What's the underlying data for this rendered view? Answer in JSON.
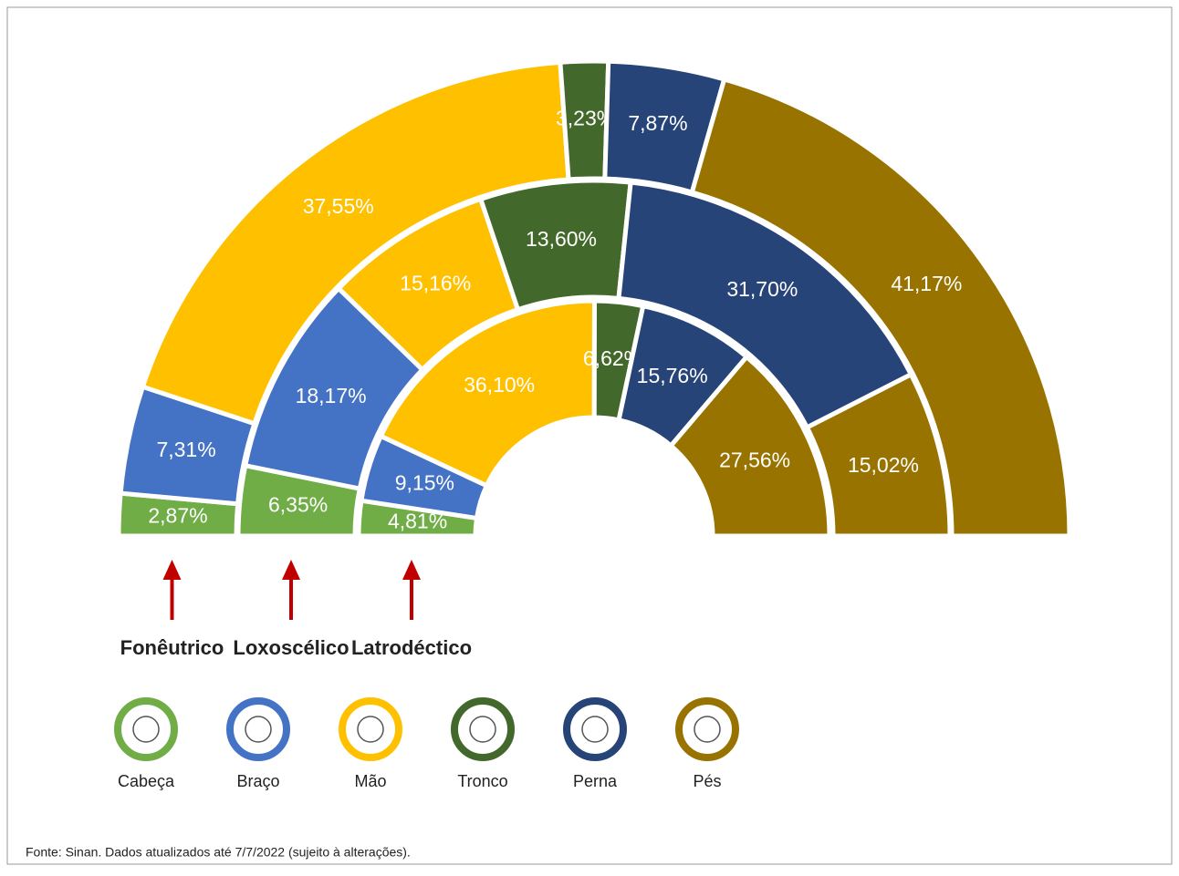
{
  "chart_data": {
    "type": "nested-semi-donut",
    "categories": [
      "Cabeça",
      "Braço",
      "Mão",
      "Tronco",
      "Perna",
      "Pés"
    ],
    "colors": [
      "#70ad47",
      "#4472c4",
      "#ffc000",
      "#43682b",
      "#264478",
      "#997300"
    ],
    "series": [
      {
        "name": "Fonêutrico",
        "values": [
          2.87,
          7.31,
          37.55,
          3.23,
          7.87,
          41.17
        ],
        "value_labels": [
          "2,87%",
          "7,31%",
          "37,55%",
          "3,23%",
          "7,87%",
          "41,17%"
        ]
      },
      {
        "name": "Loxoscélico",
        "values": [
          6.35,
          18.17,
          15.16,
          13.6,
          31.7,
          15.02
        ],
        "value_labels": [
          "6,35%",
          "18,17%",
          "15,16%",
          "13,60%",
          "31,70%",
          "15,02%"
        ]
      },
      {
        "name": "Latrodéctico",
        "values": [
          4.81,
          9.15,
          36.1,
          6.62,
          15.76,
          27.56
        ],
        "value_labels": [
          "4,81%",
          "9,15%",
          "36,10%",
          "6,62%",
          "15,76%",
          "27,56%"
        ]
      }
    ],
    "source": "Fonte: Sinan. Dados atualizados até 7/7/2022 (sujeito à alterações)."
  }
}
